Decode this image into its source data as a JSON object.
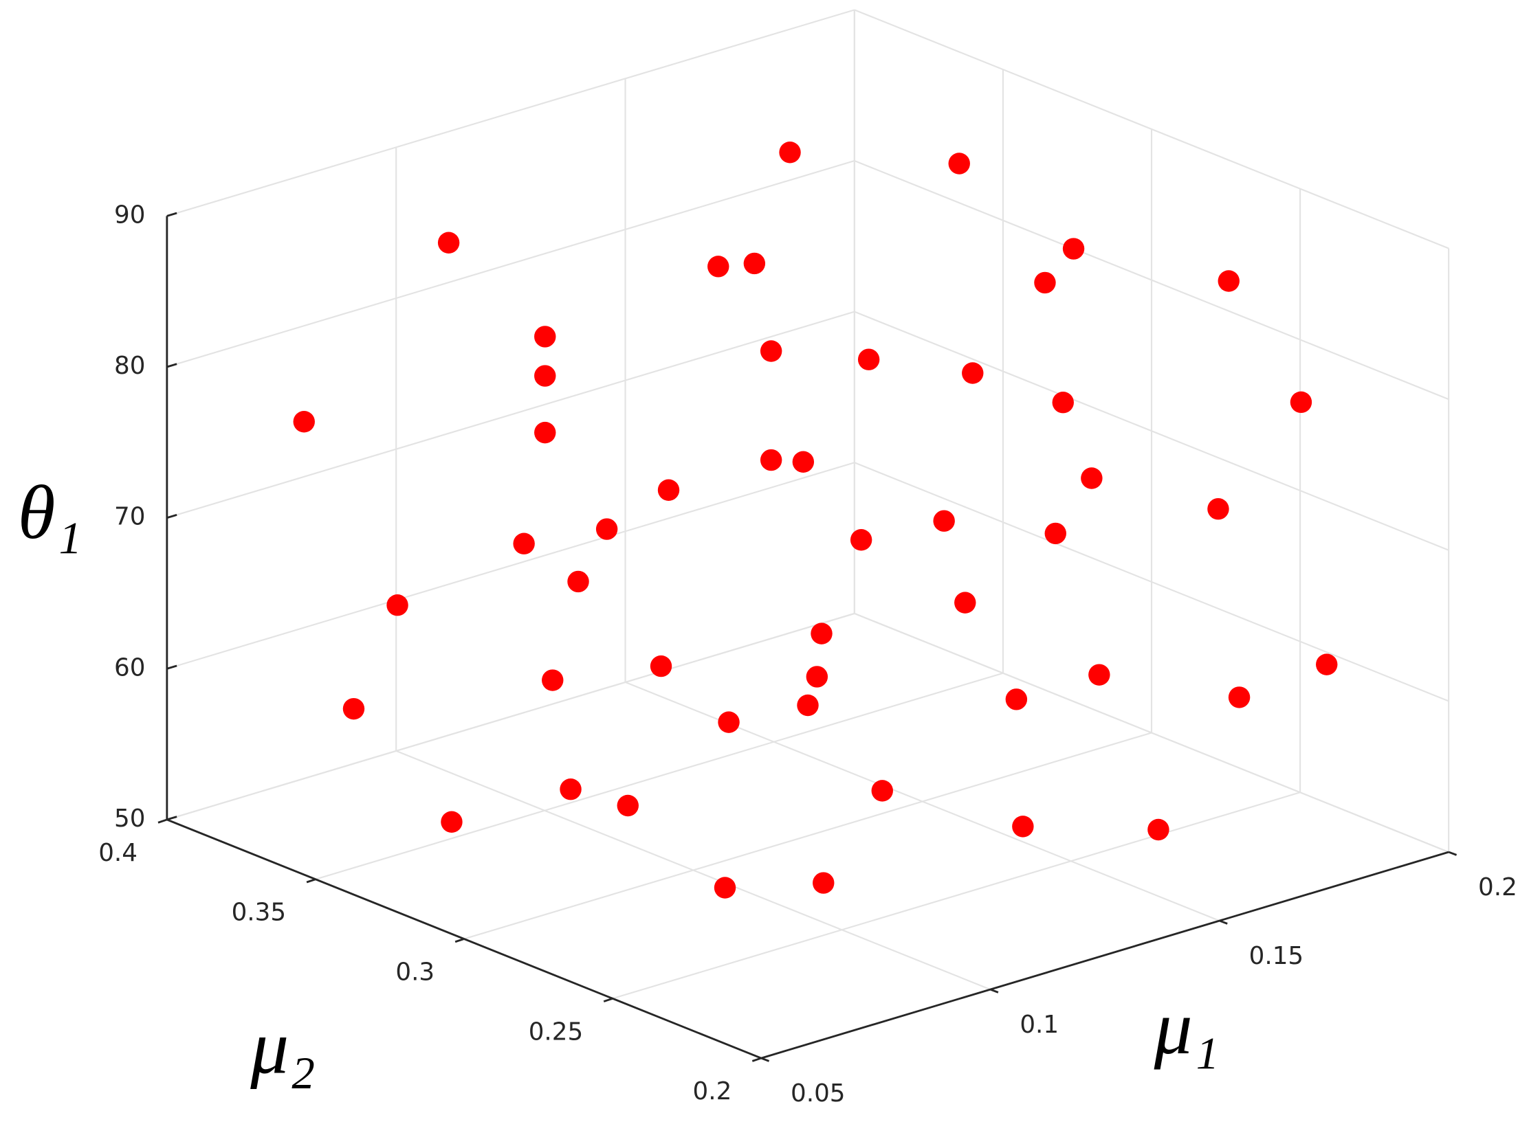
{
  "chart_data": {
    "type": "scatter3d",
    "x_label": "μ₁",
    "y_label": "μ₂",
    "z_label": "θ₁",
    "xlim": [
      0.05,
      0.2
    ],
    "xticks": [
      0.05,
      0.1,
      0.15,
      0.2
    ],
    "ylim": [
      0.2,
      0.4
    ],
    "yticks": [
      0.2,
      0.25,
      0.3,
      0.35,
      0.4
    ],
    "zlim": [
      50,
      90
    ],
    "zticks": [
      50,
      60,
      70,
      80,
      90
    ],
    "grid": true,
    "series": [
      {
        "color": "#ff0000",
        "x": [
          0.16,
          0.171,
          0.081,
          0.11,
          0.114,
          0.159,
          0.156,
          0.176,
          0.091,
          0.091,
          0.117,
          0.137,
          0.148,
          0.065,
          0.091,
          0.158,
          0.184,
          0.117,
          0.124,
          0.105,
          0.161,
          0.098,
          0.089,
          0.136,
          0.145,
          0.157,
          0.175,
          0.095,
          0.075,
          0.147,
          0.128,
          0.104,
          0.127,
          0.092,
          0.07,
          0.125,
          0.162,
          0.187,
          0.153,
          0.177,
          0.111,
          0.138,
          0.094,
          0.1,
          0.081,
          0.146,
          0.16,
          0.081,
          0.096
        ],
        "y": [
          0.36,
          0.32,
          0.353,
          0.307,
          0.301,
          0.263,
          0.268,
          0.237,
          0.336,
          0.336,
          0.3,
          0.298,
          0.28,
          0.377,
          0.336,
          0.265,
          0.225,
          0.3,
          0.3,
          0.316,
          0.26,
          0.326,
          0.34,
          0.299,
          0.285,
          0.266,
          0.239,
          0.331,
          0.361,
          0.281,
          0.3,
          0.317,
          0.3,
          0.335,
          0.368,
          0.3,
          0.259,
          0.221,
          0.273,
          0.235,
          0.305,
          0.295,
          0.332,
          0.322,
          0.352,
          0.26,
          0.236,
          0.26,
          0.25
        ],
        "z": [
          87.36,
          88.78,
          89.12,
          88.54,
          88.85,
          88.73,
          86.36,
          87.1,
          83.33,
          80.73,
          82.85,
          80.63,
          80.15,
          76.82,
          76.97,
          78.48,
          79.29,
          75.63,
          74.87,
          73.47,
          73.58,
          70.73,
          69.48,
          68.69,
          70.23,
          69.81,
          71.93,
          67.13,
          65.02,
          64.95,
          63.13,
          61.81,
          60.36,
          60.55,
          58.05,
          58.65,
          60.54,
          61.95,
          58.63,
          59.58,
          58.41,
          52.2,
          53.38,
          52.54,
          50.82,
          51.87,
          52.28,
          53.73,
          53.47
        ]
      }
    ]
  }
}
